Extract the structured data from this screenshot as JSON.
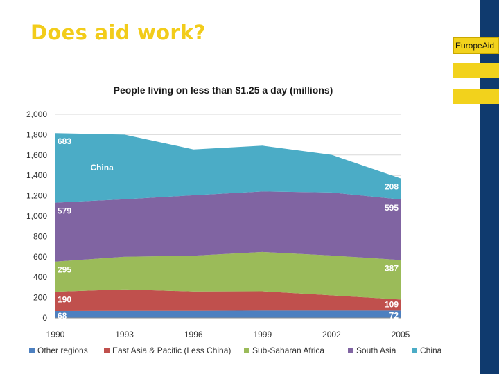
{
  "slide": {
    "title": "Does aid work?",
    "brand": "EuropeAid"
  },
  "colors": {
    "title": "#f2cc1a",
    "sidebar": "#0f3a6e",
    "brand_yellow": "#f2d21c"
  },
  "chart_data": {
    "type": "area",
    "stacked": true,
    "title": "People living on less than $1.25 a day (millions)",
    "x": [
      1990,
      1993,
      1996,
      1999,
      2002,
      2005
    ],
    "ylim": [
      0,
      2000
    ],
    "yticks": [
      0,
      200,
      400,
      600,
      800,
      1000,
      1200,
      1400,
      1600,
      1800,
      2000
    ],
    "ytick_labels": [
      "0",
      "200",
      "400",
      "600",
      "800",
      "1,000",
      "1,200",
      "1,400",
      "1,600",
      "1,800",
      "2,000"
    ],
    "grid": true,
    "legend_position": "bottom",
    "series": [
      {
        "name": "Other regions",
        "values": [
          68,
          70,
          70,
          72,
          72,
          72
        ],
        "color": "#4d80c0"
      },
      {
        "name": "East Asia & Pacific (Less China)",
        "values": [
          190,
          210,
          190,
          190,
          150,
          109
        ],
        "color": "#c0504d"
      },
      {
        "name": "Sub-Saharan Africa",
        "values": [
          295,
          320,
          350,
          385,
          390,
          387
        ],
        "color": "#9bbb59"
      },
      {
        "name": "South Asia",
        "values": [
          579,
          565,
          595,
          595,
          620,
          595
        ],
        "color": "#8064a2"
      },
      {
        "name": "China",
        "values": [
          683,
          635,
          450,
          450,
          370,
          208
        ],
        "color": "#4bacc6"
      }
    ],
    "data_labels": [
      {
        "text": "683",
        "series": 4,
        "end": "start"
      },
      {
        "text": "208",
        "series": 4,
        "end": "end"
      },
      {
        "text": "579",
        "series": 3,
        "end": "start"
      },
      {
        "text": "595",
        "series": 3,
        "end": "end"
      },
      {
        "text": "295",
        "series": 2,
        "end": "start"
      },
      {
        "text": "387",
        "series": 2,
        "end": "end"
      },
      {
        "text": "190",
        "series": 1,
        "end": "start"
      },
      {
        "text": "109",
        "series": 1,
        "end": "end"
      },
      {
        "text": "68",
        "series": 0,
        "end": "start"
      },
      {
        "text": "72",
        "series": 0,
        "end": "end"
      }
    ],
    "series_labels": [
      {
        "text": "China",
        "series": 4
      }
    ]
  }
}
